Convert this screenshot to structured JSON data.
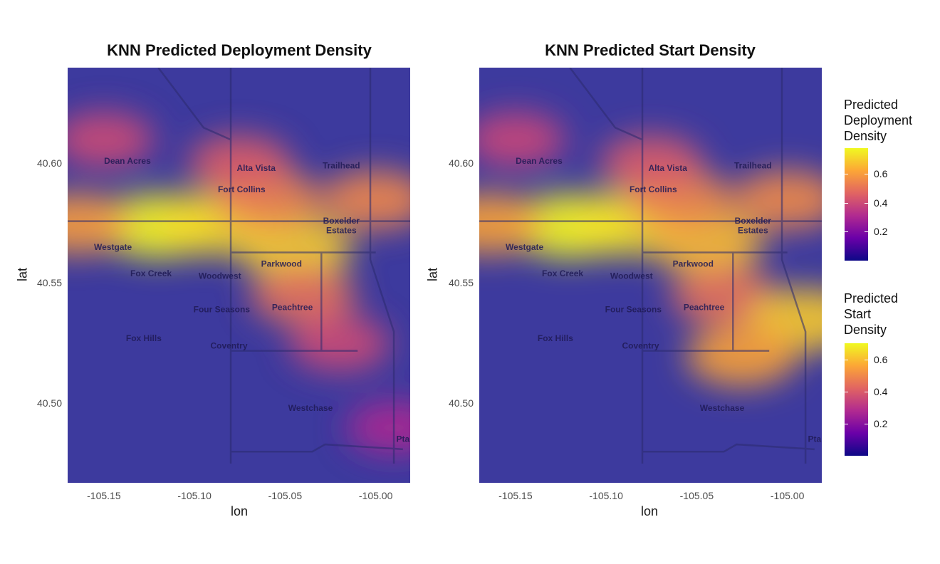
{
  "chart_data": [
    {
      "type": "heatmap",
      "title": "KNN Predicted Deployment Density",
      "xlabel": "lon",
      "ylabel": "lat",
      "x_ticks": [
        "-105.15",
        "-105.10",
        "-105.05",
        "-105.00"
      ],
      "y_ticks": [
        "40.60",
        "40.55",
        "40.50"
      ],
      "xlim": [
        -105.17,
        -104.981
      ],
      "ylim": [
        40.467,
        40.64
      ],
      "legend": {
        "title_lines": [
          "Predicted",
          "Deployment",
          "Density"
        ],
        "ticks": [
          "0.6",
          "0.4",
          "0.2"
        ],
        "tick_values": [
          0.6,
          0.4,
          0.2
        ],
        "range": [
          0.0,
          0.78
        ]
      },
      "hotspots": [
        {
          "lon": -105.12,
          "lat": 40.574,
          "value": 0.78
        },
        {
          "lon": -105.09,
          "lat": 40.575,
          "value": 0.72
        },
        {
          "lon": -105.045,
          "lat": 40.565,
          "value": 0.7
        },
        {
          "lon": -105.165,
          "lat": 40.575,
          "value": 0.6
        },
        {
          "lon": -105.06,
          "lat": 40.585,
          "value": 0.55
        },
        {
          "lon": -105.04,
          "lat": 40.545,
          "value": 0.5
        },
        {
          "lon": -105.075,
          "lat": 40.6,
          "value": 0.45
        },
        {
          "lon": -105.0,
          "lat": 40.585,
          "value": 0.55
        },
        {
          "lon": -105.02,
          "lat": 40.525,
          "value": 0.4
        },
        {
          "lon": -104.99,
          "lat": 40.49,
          "value": 0.3
        },
        {
          "lon": -105.15,
          "lat": 40.61,
          "value": 0.4
        }
      ]
    },
    {
      "type": "heatmap",
      "title": "KNN Predicted Start Density",
      "xlabel": "lon",
      "ylabel": "lat",
      "x_ticks": [
        "-105.15",
        "-105.10",
        "-105.05",
        "-105.00"
      ],
      "y_ticks": [
        "40.60",
        "40.55",
        "40.50"
      ],
      "xlim": [
        -105.17,
        -104.981
      ],
      "ylim": [
        40.467,
        40.64
      ],
      "legend": {
        "title_lines": [
          "Predicted",
          "Start",
          "Density"
        ],
        "ticks": [
          "0.6",
          "0.4",
          "0.2"
        ],
        "tick_values": [
          0.6,
          0.4,
          0.2
        ],
        "range": [
          0.0,
          0.7
        ]
      },
      "hotspots": [
        {
          "lon": -105.12,
          "lat": 40.574,
          "value": 0.7
        },
        {
          "lon": -105.09,
          "lat": 40.575,
          "value": 0.66
        },
        {
          "lon": -105.045,
          "lat": 40.567,
          "value": 0.6
        },
        {
          "lon": -105.165,
          "lat": 40.575,
          "value": 0.55
        },
        {
          "lon": -105.06,
          "lat": 40.585,
          "value": 0.5
        },
        {
          "lon": -105.035,
          "lat": 40.545,
          "value": 0.45
        },
        {
          "lon": -105.075,
          "lat": 40.6,
          "value": 0.4
        },
        {
          "lon": -105.0,
          "lat": 40.585,
          "value": 0.5
        },
        {
          "lon": -104.99,
          "lat": 40.535,
          "value": 0.62
        },
        {
          "lon": -105.025,
          "lat": 40.52,
          "value": 0.55
        },
        {
          "lon": -105.15,
          "lat": 40.61,
          "value": 0.35
        }
      ]
    }
  ],
  "places": [
    {
      "name": "Dean Acres",
      "lon": -105.137,
      "lat": 40.6
    },
    {
      "name": "Alta Vista",
      "lon": -105.066,
      "lat": 40.597
    },
    {
      "name": "Trailhead",
      "lon": -105.019,
      "lat": 40.598
    },
    {
      "name": "Fort Collins",
      "lon": -105.074,
      "lat": 40.588
    },
    {
      "name": "Boxelder",
      "lon": -105.019,
      "lat": 40.575
    },
    {
      "name": "Estates",
      "lon": -105.019,
      "lat": 40.571
    },
    {
      "name": "Westgate",
      "lon": -105.145,
      "lat": 40.564
    },
    {
      "name": "Parkwood",
      "lon": -105.052,
      "lat": 40.557
    },
    {
      "name": "Fox Creek",
      "lon": -105.124,
      "lat": 40.553
    },
    {
      "name": "Woodwest",
      "lon": -105.086,
      "lat": 40.552
    },
    {
      "name": "Four Seasons",
      "lon": -105.085,
      "lat": 40.538
    },
    {
      "name": "Peachtree",
      "lon": -105.046,
      "lat": 40.539
    },
    {
      "name": "Fox Hills",
      "lon": -105.128,
      "lat": 40.526
    },
    {
      "name": "Coventry",
      "lon": -105.081,
      "lat": 40.523
    },
    {
      "name": "Westchase",
      "lon": -105.036,
      "lat": 40.497
    },
    {
      "name": "Pta",
      "lon": -104.985,
      "lat": 40.484
    }
  ],
  "colors": {
    "scale": [
      "#0d0887",
      "#6a00a8",
      "#b12a90",
      "#e16462",
      "#fca636",
      "#f0f921"
    ],
    "base": "#3d3a9e",
    "road": "#2b2a6e",
    "label": "#1f1a55"
  }
}
